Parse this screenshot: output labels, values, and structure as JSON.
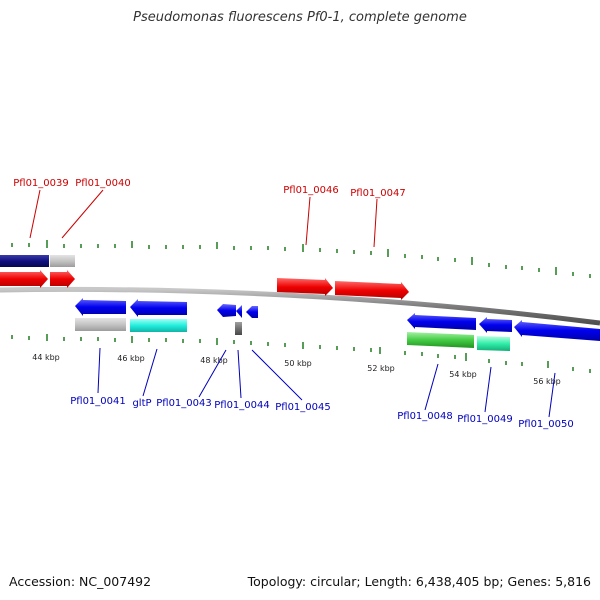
{
  "title": "Pseudomonas fluorescens Pf0-1, complete genome",
  "footer": {
    "accession": "Accession: NC_007492",
    "topology": "Topology: circular; Length: 6,438,405 bp; Genes: 5,816"
  },
  "colors": {
    "forward_label": "#cc0000",
    "reverse_label": "#0000bb",
    "tick": "#1f7a1f",
    "backbone": "#8a8a8a"
  },
  "kbp_labels": [
    "44 kbp",
    "46 kbp",
    "48 kbp",
    "50 kbp",
    "52 kbp",
    "54 kbp",
    "56 kbp"
  ],
  "genes_forward": [
    "Pfl01_0039",
    "Pfl01_0040",
    "Pfl01_0046",
    "Pfl01_0047"
  ],
  "genes_reverse": [
    "Pfl01_0041",
    "gltP",
    "Pfl01_0043",
    "Pfl01_0044",
    "Pfl01_0045",
    "Pfl01_0048",
    "Pfl01_0049",
    "Pfl01_0050"
  ]
}
